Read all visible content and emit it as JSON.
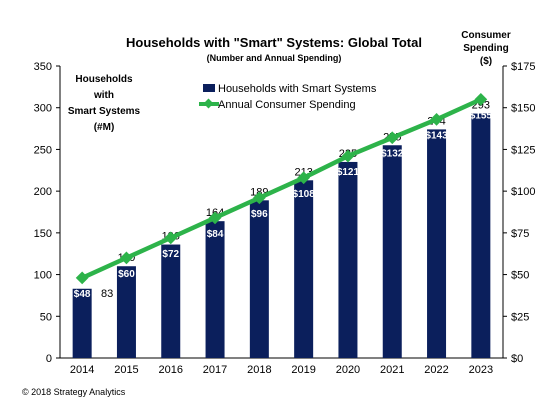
{
  "chart_data": {
    "type": "bar",
    "title": "Households with \"Smart\" Systems: Global Total",
    "subtitle": "(Number and Annual Spending)",
    "ylabel_left": [
      "Households",
      "with",
      "Smart Systems",
      "(#M)"
    ],
    "ylabel_right": [
      "Consumer",
      "Spending",
      "($)"
    ],
    "categories": [
      "2014",
      "2015",
      "2016",
      "2017",
      "2018",
      "2019",
      "2020",
      "2021",
      "2022",
      "2023"
    ],
    "series": [
      {
        "name": "Households with Smart Systems",
        "kind": "bar",
        "axis": "left",
        "color": "#0b1f5c",
        "values": [
          83,
          110,
          136,
          164,
          189,
          213,
          235,
          255,
          274,
          293
        ]
      },
      {
        "name": "Annual Consumer Spending",
        "kind": "line",
        "axis": "right",
        "color": "#2db34a",
        "values": [
          48,
          60,
          72,
          84,
          96,
          108,
          121,
          132,
          143,
          155
        ],
        "labels": [
          "$48",
          "$60",
          "$72",
          "$84",
          "$96",
          "$108",
          "$121",
          "$132",
          "$143",
          "$155"
        ]
      }
    ],
    "ylim_left": [
      0,
      350
    ],
    "yticks_left": [
      0,
      50,
      100,
      150,
      200,
      250,
      300,
      350
    ],
    "ylim_right": [
      0,
      175
    ],
    "yticks_right": [
      "$0",
      "$25",
      "$50",
      "$75",
      "$100",
      "$125",
      "$150",
      "$175"
    ],
    "grid": false,
    "legend_position": "top-center"
  },
  "copyright": "© 2018 Strategy Analytics"
}
